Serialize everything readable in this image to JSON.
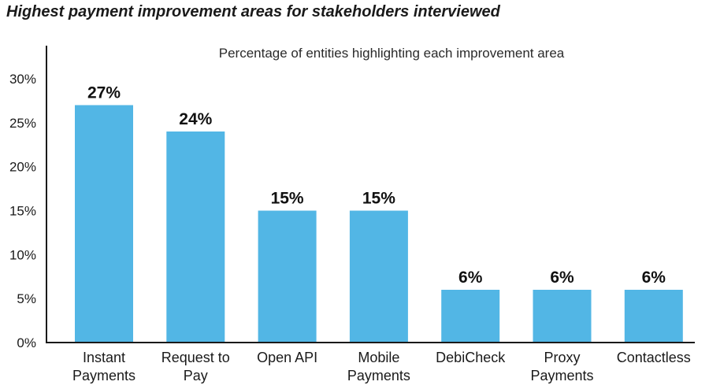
{
  "title": "Highest payment improvement areas for stakeholders interviewed",
  "colors": {
    "bar": "#52b6e5",
    "axis": "#1a1a1a"
  },
  "chart_data": {
    "type": "bar",
    "title": "Highest payment improvement areas for stakeholders interviewed",
    "subtitle": "Percentage of entities highlighting each improvement area",
    "xlabel": "",
    "ylabel": "",
    "categories": [
      [
        "Instant",
        "Payments"
      ],
      [
        "Request to",
        "Pay"
      ],
      [
        "Open API"
      ],
      [
        "Mobile",
        "Payments"
      ],
      [
        "DebiCheck"
      ],
      [
        "Proxy",
        "Payments"
      ],
      [
        "Contactless"
      ]
    ],
    "values": [
      27,
      24,
      15,
      15,
      6,
      6,
      6
    ],
    "value_labels": [
      "27%",
      "24%",
      "15%",
      "15%",
      "6%",
      "6%",
      "6%"
    ],
    "ylim": [
      0,
      30
    ],
    "yticks": [
      0,
      5,
      10,
      15,
      20,
      25,
      30
    ],
    "ytick_labels": [
      "0%",
      "5%",
      "10%",
      "15%",
      "20%",
      "25%",
      "30%"
    ],
    "grid": false,
    "legend": "none"
  }
}
